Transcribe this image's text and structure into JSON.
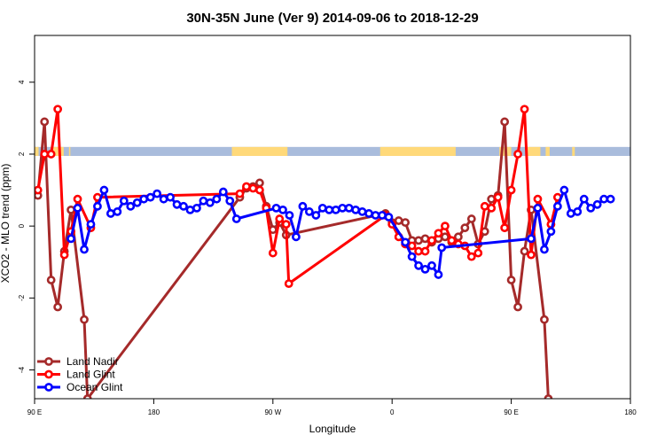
{
  "chart_data": {
    "type": "line",
    "title": "30N-35N June (Ver 9)   2014-09-06 to 2018-12-29",
    "xlabel": "Longitude",
    "ylabel": "XCO2 - MLO trend (ppm)",
    "xlim": [
      0,
      450
    ],
    "ylim": [
      -4.8,
      5.3
    ],
    "x_ticks": [
      {
        "value": 0,
        "label": "90 E"
      },
      {
        "value": 90,
        "label": "180"
      },
      {
        "value": 180,
        "label": "90 W"
      },
      {
        "value": 270,
        "label": "0"
      },
      {
        "value": 360,
        "label": "90 E"
      },
      {
        "value": 450,
        "label": "180"
      }
    ],
    "y_ticks": [
      {
        "value": -4,
        "label": "-4"
      },
      {
        "value": -2,
        "label": "-2"
      },
      {
        "value": 0,
        "label": "0"
      },
      {
        "value": 2,
        "label": "2"
      },
      {
        "value": 4,
        "label": "4"
      }
    ],
    "grid": false,
    "legend_position": "bottom-left",
    "surface_band": {
      "y_range": [
        1.95,
        2.2
      ],
      "land_color": "#ffd97a",
      "ocean_color": "#a9bcdc",
      "land_segments": [
        [
          0,
          3
        ],
        [
          12,
          22
        ],
        [
          26,
          27
        ],
        [
          149,
          191
        ],
        [
          261,
          318
        ],
        [
          351,
          360
        ],
        [
          372,
          382
        ],
        [
          386,
          389
        ],
        [
          406,
          408
        ]
      ]
    },
    "series": [
      {
        "name": "Land Nadir",
        "color": "#a52a2a",
        "points": [
          [
            2.5,
            0.85
          ],
          [
            7.5,
            2.9
          ],
          [
            12.5,
            -1.5
          ],
          [
            17.5,
            -2.25
          ],
          [
            22.5,
            -0.7
          ],
          [
            27.5,
            0.45
          ],
          [
            37.5,
            -2.6
          ],
          [
            40,
            -4.8
          ],
          [
            155,
            0.8
          ],
          [
            160,
            1.05
          ],
          [
            165,
            1.1
          ],
          [
            170,
            1.2
          ],
          [
            175,
            0.55
          ],
          [
            180,
            -0.1
          ],
          [
            185,
            0.1
          ],
          [
            190,
            -0.25
          ],
          [
            265,
            0.35
          ],
          [
            270,
            0.1
          ],
          [
            275,
            0.15
          ],
          [
            280,
            0.1
          ],
          [
            285,
            -0.4
          ],
          [
            290,
            -0.4
          ],
          [
            295,
            -0.35
          ],
          [
            300,
            -0.45
          ],
          [
            305,
            -0.35
          ],
          [
            310,
            -0.3
          ],
          [
            315,
            -0.45
          ],
          [
            320,
            -0.3
          ],
          [
            325,
            -0.05
          ],
          [
            330,
            0.2
          ],
          [
            335,
            -0.5
          ],
          [
            340,
            -0.15
          ],
          [
            345,
            0.75
          ],
          [
            350,
            0.85
          ],
          [
            355,
            2.9
          ],
          [
            360,
            -1.5
          ],
          [
            365,
            -2.25
          ],
          [
            370,
            -0.7
          ],
          [
            375,
            0.45
          ],
          [
            385,
            -2.6
          ],
          [
            388,
            -4.8
          ]
        ]
      },
      {
        "name": "Land Glint",
        "color": "#ff0000",
        "points": [
          [
            2.5,
            1.0
          ],
          [
            7.5,
            2.0
          ],
          [
            12.5,
            2.0
          ],
          [
            17.5,
            3.25
          ],
          [
            22.5,
            -0.8
          ],
          [
            27.5,
            -0.15
          ],
          [
            32.5,
            0.75
          ],
          [
            42.5,
            -0.05
          ],
          [
            47.5,
            0.8
          ],
          [
            155,
            0.9
          ],
          [
            160,
            1.1
          ],
          [
            165,
            1.05
          ],
          [
            170,
            1.0
          ],
          [
            175,
            0.5
          ],
          [
            180,
            -0.75
          ],
          [
            185,
            0.2
          ],
          [
            190,
            0.05
          ],
          [
            192,
            -1.6
          ],
          [
            265,
            0.3
          ],
          [
            270,
            0.05
          ],
          [
            275,
            -0.3
          ],
          [
            280,
            -0.5
          ],
          [
            285,
            -0.55
          ],
          [
            290,
            -0.7
          ],
          [
            295,
            -0.7
          ],
          [
            300,
            -0.4
          ],
          [
            305,
            -0.2
          ],
          [
            310,
            0.0
          ],
          [
            315,
            -0.4
          ],
          [
            320,
            -0.5
          ],
          [
            325,
            -0.55
          ],
          [
            330,
            -0.85
          ],
          [
            335,
            -0.75
          ],
          [
            340,
            0.55
          ],
          [
            345,
            0.5
          ],
          [
            350,
            0.8
          ],
          [
            355,
            -0.05
          ],
          [
            360,
            1.0
          ],
          [
            365,
            2.0
          ],
          [
            370,
            3.25
          ],
          [
            375,
            -0.8
          ],
          [
            380,
            0.75
          ],
          [
            390,
            0.05
          ],
          [
            395,
            0.8
          ]
        ]
      },
      {
        "name": "Ocean Glint",
        "color": "#0000ff",
        "points": [
          [
            27.5,
            -0.35
          ],
          [
            32.5,
            0.5
          ],
          [
            37.5,
            -0.65
          ],
          [
            42.5,
            0.05
          ],
          [
            47.5,
            0.55
          ],
          [
            52.5,
            1.0
          ],
          [
            57.5,
            0.35
          ],
          [
            62.5,
            0.4
          ],
          [
            67.5,
            0.7
          ],
          [
            72.5,
            0.55
          ],
          [
            77.5,
            0.65
          ],
          [
            82.5,
            0.75
          ],
          [
            87.5,
            0.8
          ],
          [
            92.5,
            0.9
          ],
          [
            97.5,
            0.75
          ],
          [
            102.5,
            0.8
          ],
          [
            107.5,
            0.6
          ],
          [
            112.5,
            0.55
          ],
          [
            117.5,
            0.45
          ],
          [
            122.5,
            0.5
          ],
          [
            127.5,
            0.7
          ],
          [
            132.5,
            0.65
          ],
          [
            137.5,
            0.75
          ],
          [
            142.5,
            0.95
          ],
          [
            147.5,
            0.7
          ],
          [
            152.5,
            0.2
          ],
          [
            182.5,
            0.5
          ],
          [
            187.5,
            0.45
          ],
          [
            192.5,
            0.3
          ],
          [
            197.5,
            -0.3
          ],
          [
            202.5,
            0.55
          ],
          [
            207.5,
            0.4
          ],
          [
            212.5,
            0.3
          ],
          [
            217.5,
            0.5
          ],
          [
            222.5,
            0.45
          ],
          [
            227.5,
            0.45
          ],
          [
            232.5,
            0.5
          ],
          [
            237.5,
            0.5
          ],
          [
            242.5,
            0.45
          ],
          [
            247.5,
            0.4
          ],
          [
            252.5,
            0.35
          ],
          [
            257.5,
            0.3
          ],
          [
            262.5,
            0.3
          ],
          [
            267.5,
            0.25
          ],
          [
            280,
            -0.45
          ],
          [
            285,
            -0.85
          ],
          [
            290,
            -1.1
          ],
          [
            295,
            -1.2
          ],
          [
            300,
            -1.1
          ],
          [
            305,
            -1.35
          ],
          [
            307.5,
            -0.6
          ],
          [
            375,
            -0.35
          ],
          [
            380,
            0.5
          ],
          [
            385,
            -0.65
          ],
          [
            390,
            -0.15
          ],
          [
            395,
            0.55
          ],
          [
            400,
            1.0
          ],
          [
            405,
            0.35
          ],
          [
            410,
            0.4
          ],
          [
            415,
            0.75
          ],
          [
            420,
            0.5
          ],
          [
            425,
            0.6
          ],
          [
            430,
            0.75
          ],
          [
            435,
            0.75
          ]
        ]
      }
    ]
  }
}
